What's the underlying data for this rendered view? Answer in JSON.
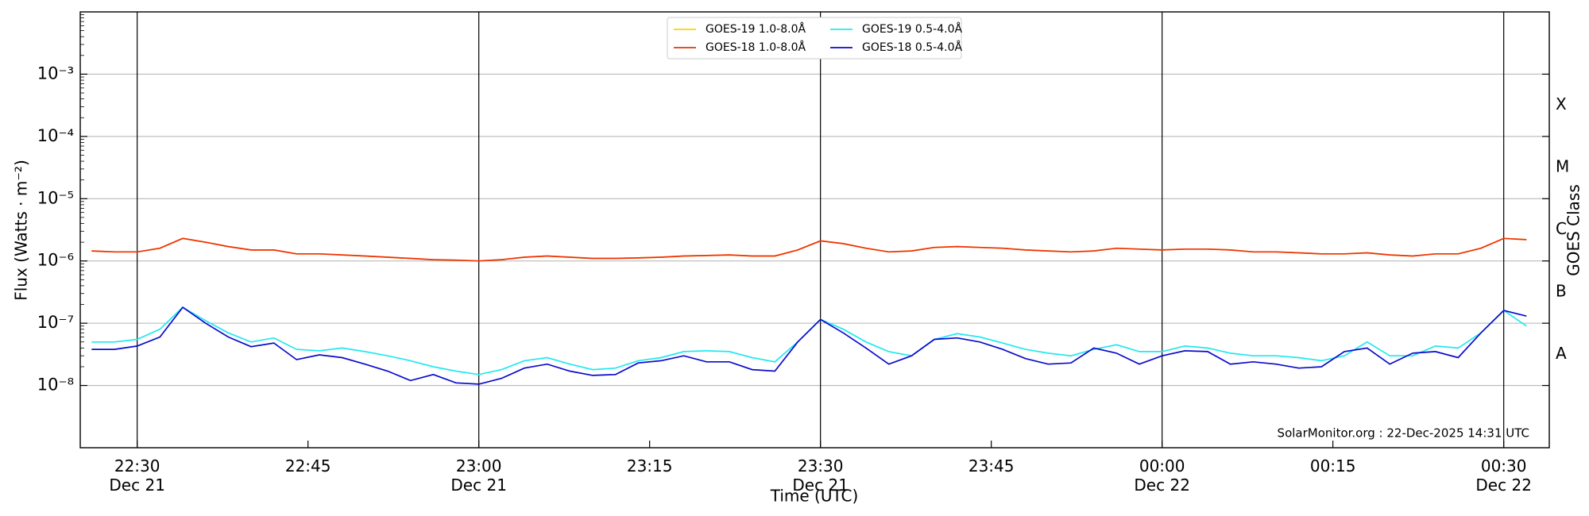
{
  "chart_data": {
    "type": "line",
    "yscale": "log",
    "grid": true,
    "xlabel": "Time (UTC)",
    "ylabel": "Flux (Watts · m⁻²)",
    "y2label": "GOES Class",
    "class_labels": [
      "A",
      "B",
      "C",
      "M",
      "X"
    ],
    "annotation": "SolarMonitor.org : 22-Dec-2025 14:31 UTC",
    "legend": "upper center",
    "xlim": [
      "Dec 21 22:25",
      "Dec 22 00:34"
    ],
    "ylim": [
      1e-09,
      0.01
    ],
    "yticks": [
      {
        "value": 1e-08,
        "label": "10⁻⁸"
      },
      {
        "value": 1e-07,
        "label": "10⁻⁷"
      },
      {
        "value": 1e-06,
        "label": "10⁻⁶"
      },
      {
        "value": 1e-05,
        "label": "10⁻⁵"
      },
      {
        "value": 0.0001,
        "label": "10⁻⁴"
      },
      {
        "value": 0.001,
        "label": "10⁻³"
      }
    ],
    "xticks": [
      {
        "value": "Dec 21 22:30",
        "label": [
          "22:30",
          "Dec 21"
        ]
      },
      {
        "value": "Dec 21 22:45",
        "label": [
          "22:45"
        ]
      },
      {
        "value": "Dec 21 23:00",
        "label": [
          "23:00",
          "Dec 21"
        ]
      },
      {
        "value": "Dec 21 23:15",
        "label": [
          "23:15"
        ]
      },
      {
        "value": "Dec 21 23:30",
        "label": [
          "23:30",
          "Dec 21"
        ]
      },
      {
        "value": "Dec 21 23:45",
        "label": [
          "23:45"
        ]
      },
      {
        "value": "Dec 22 00:00",
        "label": [
          "00:00",
          "Dec 22"
        ]
      },
      {
        "value": "Dec 22 00:15",
        "label": [
          "00:15"
        ]
      },
      {
        "value": "Dec 22 00:30",
        "label": [
          "00:30",
          "Dec 22"
        ]
      }
    ],
    "vlines": [
      "Dec 21 22:30",
      "Dec 21 23:00",
      "Dec 21 23:30",
      "Dec 22 00:00",
      "Dec 22 00:30"
    ],
    "x": [
      "Dec 21 22:26",
      "Dec 21 22:28",
      "Dec 21 22:30",
      "Dec 21 22:32",
      "Dec 21 22:34",
      "Dec 21 22:36",
      "Dec 21 22:38",
      "Dec 21 22:40",
      "Dec 21 22:42",
      "Dec 21 22:44",
      "Dec 21 22:46",
      "Dec 21 22:48",
      "Dec 21 22:50",
      "Dec 21 22:52",
      "Dec 21 22:54",
      "Dec 21 22:56",
      "Dec 21 22:58",
      "Dec 21 23:00",
      "Dec 21 23:02",
      "Dec 21 23:04",
      "Dec 21 23:06",
      "Dec 21 23:08",
      "Dec 21 23:10",
      "Dec 21 23:12",
      "Dec 21 23:14",
      "Dec 21 23:16",
      "Dec 21 23:18",
      "Dec 21 23:20",
      "Dec 21 23:22",
      "Dec 21 23:24",
      "Dec 21 23:26",
      "Dec 21 23:28",
      "Dec 21 23:30",
      "Dec 21 23:32",
      "Dec 21 23:34",
      "Dec 21 23:36",
      "Dec 21 23:38",
      "Dec 21 23:40",
      "Dec 21 23:42",
      "Dec 21 23:44",
      "Dec 21 23:46",
      "Dec 21 23:48",
      "Dec 21 23:50",
      "Dec 21 23:52",
      "Dec 21 23:54",
      "Dec 21 23:56",
      "Dec 21 23:58",
      "Dec 22 00:00",
      "Dec 22 00:02",
      "Dec 22 00:04",
      "Dec 22 00:06",
      "Dec 22 00:08",
      "Dec 22 00:10",
      "Dec 22 00:12",
      "Dec 22 00:14",
      "Dec 22 00:16",
      "Dec 22 00:18",
      "Dec 22 00:20",
      "Dec 22 00:22",
      "Dec 22 00:24",
      "Dec 22 00:26",
      "Dec 22 00:28",
      "Dec 22 00:30",
      "Dec 22 00:32"
    ],
    "series": [
      {
        "name": "GOES-19 1.0-8.0Å",
        "color": "#ffd200",
        "values": [
          1.45e-06,
          1.4e-06,
          1.4e-06,
          1.6e-06,
          2.3e-06,
          2e-06,
          1.7e-06,
          1.5e-06,
          1.5e-06,
          1.3e-06,
          1.3e-06,
          1.25e-06,
          1.2e-06,
          1.15e-06,
          1.1e-06,
          1.05e-06,
          1.03e-06,
          1e-06,
          1.05e-06,
          1.15e-06,
          1.2e-06,
          1.15e-06,
          1.1e-06,
          1.1e-06,
          1.12e-06,
          1.15e-06,
          1.2e-06,
          1.22e-06,
          1.25e-06,
          1.2e-06,
          1.2e-06,
          1.5e-06,
          2.1e-06,
          1.9e-06,
          1.6e-06,
          1.4e-06,
          1.45e-06,
          1.65e-06,
          1.7e-06,
          1.65e-06,
          1.6e-06,
          1.5e-06,
          1.45e-06,
          1.4e-06,
          1.45e-06,
          1.6e-06,
          1.55e-06,
          1.5e-06,
          1.55e-06,
          1.55e-06,
          1.5e-06,
          1.4e-06,
          1.4e-06,
          1.35e-06,
          1.3e-06,
          1.3e-06,
          1.35e-06,
          1.25e-06,
          1.2e-06,
          1.3e-06,
          1.3e-06,
          1.6e-06,
          2.3e-06,
          2.2e-06
        ]
      },
      {
        "name": "GOES-18 1.0-8.0Å",
        "color": "#ee3008",
        "values": [
          1.45e-06,
          1.4e-06,
          1.4e-06,
          1.6e-06,
          2.3e-06,
          2e-06,
          1.7e-06,
          1.5e-06,
          1.5e-06,
          1.3e-06,
          1.3e-06,
          1.25e-06,
          1.2e-06,
          1.15e-06,
          1.1e-06,
          1.05e-06,
          1.03e-06,
          1e-06,
          1.05e-06,
          1.15e-06,
          1.2e-06,
          1.15e-06,
          1.1e-06,
          1.1e-06,
          1.12e-06,
          1.15e-06,
          1.2e-06,
          1.22e-06,
          1.25e-06,
          1.2e-06,
          1.2e-06,
          1.5e-06,
          2.1e-06,
          1.9e-06,
          1.6e-06,
          1.4e-06,
          1.45e-06,
          1.65e-06,
          1.7e-06,
          1.65e-06,
          1.6e-06,
          1.5e-06,
          1.45e-06,
          1.4e-06,
          1.45e-06,
          1.6e-06,
          1.55e-06,
          1.5e-06,
          1.55e-06,
          1.55e-06,
          1.5e-06,
          1.4e-06,
          1.4e-06,
          1.35e-06,
          1.3e-06,
          1.3e-06,
          1.35e-06,
          1.25e-06,
          1.2e-06,
          1.3e-06,
          1.3e-06,
          1.6e-06,
          2.3e-06,
          2.2e-06
        ]
      },
      {
        "name": "GOES-19 0.5-4.0Å",
        "color": "#22e8f0",
        "values": [
          5e-08,
          5e-08,
          5.5e-08,
          8e-08,
          1.8e-07,
          1.1e-07,
          7e-08,
          5e-08,
          5.8e-08,
          3.8e-08,
          3.6e-08,
          4e-08,
          3.5e-08,
          3e-08,
          2.5e-08,
          2e-08,
          1.7e-08,
          1.5e-08,
          1.8e-08,
          2.5e-08,
          2.8e-08,
          2.2e-08,
          1.8e-08,
          1.9e-08,
          2.5e-08,
          2.8e-08,
          3.5e-08,
          3.6e-08,
          3.5e-08,
          2.8e-08,
          2.4e-08,
          5e-08,
          1.15e-07,
          8e-08,
          5e-08,
          3.5e-08,
          3e-08,
          5.5e-08,
          6.8e-08,
          6e-08,
          4.8e-08,
          3.8e-08,
          3.3e-08,
          3e-08,
          3.8e-08,
          4.5e-08,
          3.5e-08,
          3.5e-08,
          4.3e-08,
          4e-08,
          3.3e-08,
          3e-08,
          3e-08,
          2.8e-08,
          2.5e-08,
          3e-08,
          5e-08,
          3e-08,
          3e-08,
          4.3e-08,
          4e-08,
          7e-08,
          1.6e-07,
          9e-08
        ]
      },
      {
        "name": "GOES-18 0.5-4.0Å",
        "color": "#0a0acc",
        "values": [
          3.8e-08,
          3.8e-08,
          4.3e-08,
          6e-08,
          1.8e-07,
          1e-07,
          6e-08,
          4.2e-08,
          4.8e-08,
          2.6e-08,
          3.1e-08,
          2.8e-08,
          2.2e-08,
          1.7e-08,
          1.2e-08,
          1.5e-08,
          1.1e-08,
          1.05e-08,
          1.3e-08,
          1.9e-08,
          2.2e-08,
          1.7e-08,
          1.45e-08,
          1.5e-08,
          2.3e-08,
          2.5e-08,
          3e-08,
          2.4e-08,
          2.4e-08,
          1.8e-08,
          1.7e-08,
          5e-08,
          1.15e-07,
          7e-08,
          4e-08,
          2.2e-08,
          3e-08,
          5.5e-08,
          5.8e-08,
          5e-08,
          3.8e-08,
          2.7e-08,
          2.2e-08,
          2.3e-08,
          4e-08,
          3.3e-08,
          2.2e-08,
          3e-08,
          3.6e-08,
          3.5e-08,
          2.2e-08,
          2.4e-08,
          2.2e-08,
          1.9e-08,
          2e-08,
          3.5e-08,
          4e-08,
          2.2e-08,
          3.3e-08,
          3.5e-08,
          2.8e-08,
          7e-08,
          1.6e-07,
          1.3e-07
        ]
      }
    ]
  }
}
